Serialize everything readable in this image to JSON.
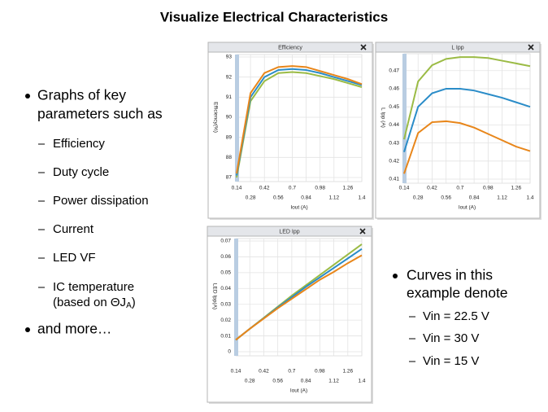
{
  "title": "Visualize Electrical Characteristics",
  "left_bullets": {
    "intro": [
      "Graphs of key",
      "parameters such as"
    ],
    "subitems": [
      "Efficiency",
      "Duty cycle",
      "Power dissipation",
      "Current",
      "LED VF",
      "IC temperature"
    ],
    "temperature_note": {
      "text": "(based on ΘJ",
      "subscript": "A",
      "close": ")"
    },
    "outro": "and more…"
  },
  "right_bullets": {
    "intro": [
      "Curves in this",
      "example denote"
    ],
    "subitems": [
      "Vin = 22.5 V",
      "Vin = 30 V",
      "Vin = 15 V"
    ]
  },
  "chart_data": [
    {
      "type": "line",
      "title": "Efficiency",
      "xlabel": "Iout (A)",
      "ylabel": "Efficiency(%)",
      "x": [
        0.14,
        0.28,
        0.42,
        0.56,
        0.7,
        0.84,
        0.98,
        1.12,
        1.26,
        1.4
      ],
      "series": [
        {
          "color": "#9bbb45",
          "values": [
            87.0,
            90.8,
            91.8,
            92.2,
            92.25,
            92.2,
            92.05,
            91.9,
            91.7,
            91.5
          ]
        },
        {
          "color": "#2a8cc8",
          "values": [
            87.1,
            91.0,
            92.0,
            92.35,
            92.4,
            92.35,
            92.2,
            92.0,
            91.8,
            91.6
          ]
        },
        {
          "color": "#e8861a",
          "values": [
            87.2,
            91.2,
            92.2,
            92.5,
            92.55,
            92.5,
            92.3,
            92.1,
            91.9,
            91.65
          ]
        }
      ],
      "xlim": [
        0.14,
        1.4
      ],
      "ylim": [
        87,
        93
      ],
      "xticks": [
        0.14,
        0.28,
        0.42,
        0.56,
        0.7,
        0.84,
        0.98,
        1.12,
        1.26,
        1.4
      ],
      "yticks": [
        87,
        88,
        89,
        90,
        91,
        92,
        93
      ],
      "grid": true
    },
    {
      "type": "line",
      "title": "L Ipp",
      "xlabel": "Iout (A)",
      "ylabel": "L Ipp (A)",
      "x": [
        0.14,
        0.28,
        0.42,
        0.56,
        0.7,
        0.84,
        0.98,
        1.12,
        1.26,
        1.4
      ],
      "series": [
        {
          "color": "#9bbb45",
          "values": [
            0.432,
            0.464,
            0.473,
            0.4765,
            0.4775,
            0.4775,
            0.477,
            0.4755,
            0.474,
            0.4725
          ]
        },
        {
          "color": "#2a8cc8",
          "values": [
            0.425,
            0.45,
            0.4575,
            0.46,
            0.46,
            0.459,
            0.457,
            0.455,
            0.4525,
            0.45
          ]
        },
        {
          "color": "#e8861a",
          "values": [
            0.413,
            0.4355,
            0.4415,
            0.442,
            0.441,
            0.4385,
            0.435,
            0.4315,
            0.428,
            0.4255
          ]
        }
      ],
      "xlim": [
        0.14,
        1.4
      ],
      "ylim": [
        0.41,
        0.478
      ],
      "xticks": [
        0.14,
        0.28,
        0.42,
        0.56,
        0.7,
        0.84,
        0.98,
        1.12,
        1.26,
        1.4
      ],
      "yticks": [
        0.41,
        0.42,
        0.43,
        0.44,
        0.45,
        0.46,
        0.47
      ],
      "grid": true
    },
    {
      "type": "line",
      "title": "LED Ipp",
      "xlabel": "Iout (A)",
      "ylabel": "LED Ipp(A)",
      "x": [
        0.14,
        0.28,
        0.42,
        0.56,
        0.7,
        0.84,
        0.98,
        1.12,
        1.26,
        1.4
      ],
      "series": [
        {
          "color": "#9bbb45",
          "values": [
            0.0075,
            0.0145,
            0.0215,
            0.0285,
            0.0355,
            0.042,
            0.0485,
            0.055,
            0.0615,
            0.068
          ]
        },
        {
          "color": "#2a8cc8",
          "values": [
            0.0075,
            0.0145,
            0.0212,
            0.028,
            0.0345,
            0.041,
            0.047,
            0.053,
            0.059,
            0.065
          ]
        },
        {
          "color": "#e8861a",
          "values": [
            0.0075,
            0.0145,
            0.021,
            0.0275,
            0.0335,
            0.0395,
            0.0455,
            0.0505,
            0.056,
            0.061
          ]
        }
      ],
      "xlim": [
        0.14,
        1.4
      ],
      "ylim": [
        0,
        0.07
      ],
      "xticks": [
        0.14,
        0.28,
        0.42,
        0.56,
        0.7,
        0.84,
        0.98,
        1.12,
        1.26,
        1.4
      ],
      "yticks": [
        0,
        0.01,
        0.02,
        0.03,
        0.04,
        0.05,
        0.06,
        0.07
      ],
      "grid": true
    }
  ]
}
